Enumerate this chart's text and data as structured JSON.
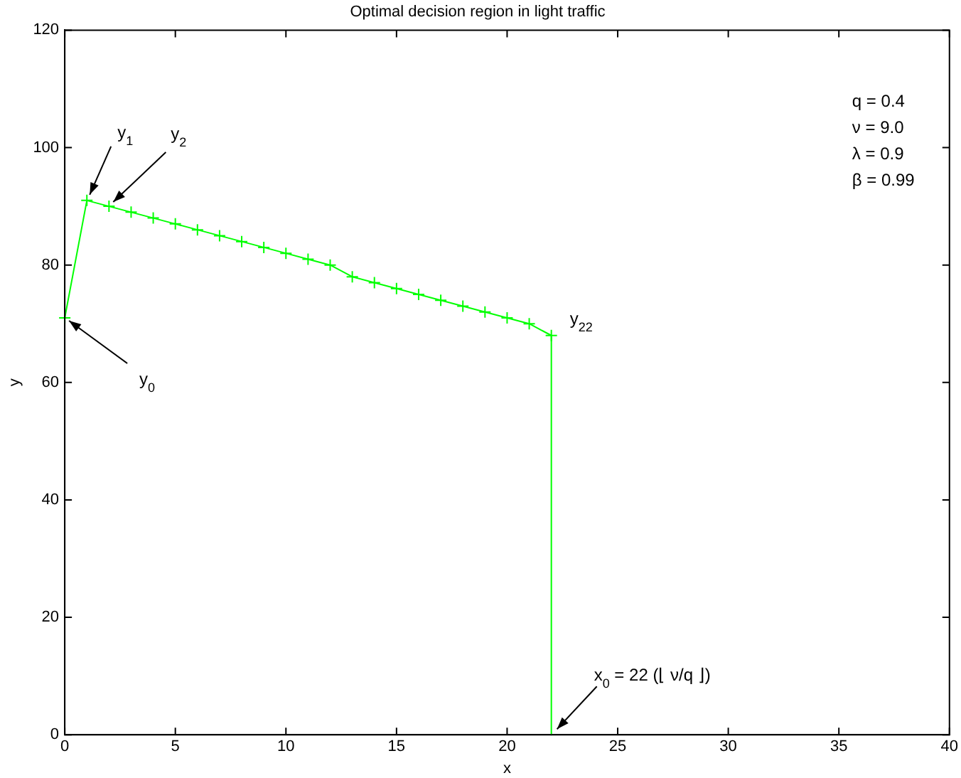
{
  "chart_data": {
    "type": "line",
    "title": "Optimal decision region in light traffic",
    "xlabel": "x",
    "ylabel": "y",
    "xlim": [
      0,
      40
    ],
    "xticks": [
      0,
      5,
      10,
      15,
      20,
      25,
      30,
      35,
      40
    ],
    "ylim": [
      0,
      120
    ],
    "yticks": [
      0,
      20,
      40,
      60,
      80,
      100,
      120
    ],
    "grid": false,
    "legend": false,
    "line_style": "solid",
    "series": [
      {
        "color": "#00ff00",
        "marker": "cross",
        "x": [
          0,
          1,
          2,
          3,
          4,
          5,
          6,
          7,
          8,
          9,
          10,
          11,
          12,
          13,
          14,
          15,
          16,
          17,
          18,
          19,
          20,
          21,
          22
        ],
        "values": [
          71,
          91,
          90,
          89,
          88,
          87,
          86,
          85,
          84,
          83,
          82,
          81,
          80,
          78,
          77,
          76,
          75,
          74,
          73,
          72,
          71,
          70,
          68
        ]
      },
      {
        "color": "#00ff00",
        "marker": "none",
        "x": [
          22,
          22
        ],
        "values": [
          68,
          0
        ]
      }
    ],
    "annotations": [
      {
        "text": "y$_{0}$",
        "x": 0,
        "y": 71
      },
      {
        "text": "y$_{1}$",
        "x": 1,
        "y": 91
      },
      {
        "text": "y$_{2}$",
        "x": 2,
        "y": 90
      },
      {
        "text": "y$_{22}$",
        "x": 22,
        "y": 68
      },
      {
        "text": "x$_{0}$ = 22 (⌊ ν/q ⌋)",
        "x": 22,
        "y": 0
      },
      "q = 0.4",
      "ν = 9.0",
      "λ = 0.9",
      "β = 0.99"
    ]
  }
}
